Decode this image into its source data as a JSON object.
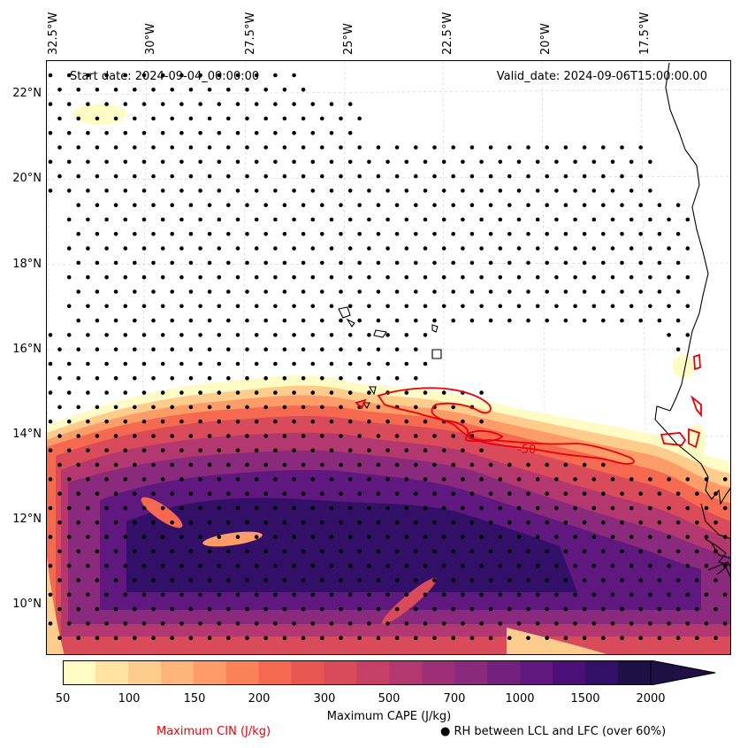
{
  "map": {
    "start_date": "Start date: 2024-09-04_00:00:00",
    "valid_date": "Valid_date: 2024-09-06T15:00:00.00",
    "lon_labels": [
      "32.5°W",
      "30°W",
      "27.5°W",
      "25°W",
      "22.5°W",
      "20°W",
      "17.5°W"
    ],
    "lat_labels": [
      "22°N",
      "20°N",
      "18°N",
      "16°N",
      "14°N",
      "12°N",
      "10°N"
    ],
    "contour_label": "-50",
    "colors": {
      "cin_contour": "#e8000b",
      "coastline": "#000000",
      "dots": "#000000"
    }
  },
  "colorbar": {
    "ticks": [
      "50",
      "100",
      "150",
      "200",
      "300",
      "500",
      "700",
      "1000",
      "1500",
      "2000"
    ],
    "colors": [
      "#fffbc4",
      "#fee4a0",
      "#fecc8c",
      "#feb57a",
      "#fd9c68",
      "#fb8159",
      "#f4694f",
      "#e8574f",
      "#d94a5a",
      "#c63f66",
      "#b3386f",
      "#9e2f77",
      "#892a7c",
      "#74207f",
      "#5f187e",
      "#4a1078",
      "#331067",
      "#1e0f45"
    ],
    "extend_color": "#1e0f45",
    "title": "Maximum CAPE (J/kg)"
  },
  "legend": {
    "cin_label": "Maximum CIN (J/kg)",
    "rh_label": "● RH between LCL and LFC (over 60%)"
  }
}
